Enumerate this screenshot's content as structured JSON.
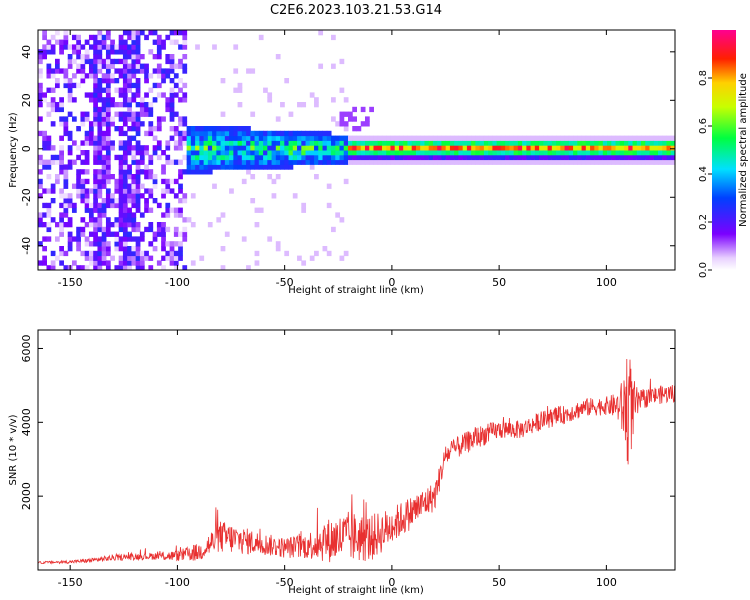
{
  "title": "C2E6.2023.103.21.53.G14",
  "chart_data": [
    {
      "type": "heatmap",
      "xlabel": "Height of straight line (km)",
      "ylabel": "Frequency (Hz)",
      "xlim": [
        -165,
        132
      ],
      "ylim": [
        -50,
        49
      ],
      "xticks": [
        -150,
        -100,
        -50,
        0,
        50,
        100
      ],
      "yticks": [
        -40,
        -20,
        0,
        20,
        40
      ],
      "colorbar": {
        "label": "Normalized spectral amplitude",
        "range": [
          0.0,
          1.0
        ],
        "ticks": [
          0.0,
          0.2,
          0.4,
          0.6,
          0.8
        ],
        "colormap": "rainbow (white→purple→blue→cyan→green→yellow→red)"
      },
      "features": [
        {
          "x_range": [
            -165,
            -95
          ],
          "description_value": "broadband noise 0.05–0.35"
        },
        {
          "x_range": [
            -95,
            -20
          ],
          "center_hz": 0,
          "halfwidth_hz": 8,
          "amplitude": 0.45
        },
        {
          "x_range": [
            -20,
            132
          ],
          "center_hz": 0,
          "halfwidth_hz": 3,
          "amplitude": 0.85
        },
        {
          "x_range": [
            -25,
            -10
          ],
          "center_hz": 12,
          "amplitude": 0.2
        }
      ]
    },
    {
      "type": "line",
      "xlabel": "Height of straight line (km)",
      "ylabel": "SNR (10 * v/v)",
      "xlim": [
        -165,
        132
      ],
      "ylim": [
        0,
        6500
      ],
      "xticks": [
        -150,
        -100,
        -50,
        0,
        50,
        100
      ],
      "yticks": [
        2000,
        4000,
        6000
      ],
      "color": "#e83030",
      "series": [
        {
          "x": [
            -165,
            -150,
            -140,
            -130,
            -120,
            -110,
            -100,
            -90,
            -80,
            -70,
            -60,
            -50,
            -40,
            -30,
            -20,
            -10,
            0,
            10,
            20,
            25,
            30,
            40,
            50,
            60,
            70,
            80,
            90,
            100,
            105,
            108,
            110,
            112,
            115,
            120,
            132
          ],
          "y": [
            200,
            220,
            260,
            330,
            360,
            380,
            380,
            480,
            900,
            800,
            700,
            600,
            650,
            800,
            900,
            850,
            1200,
            1600,
            2000,
            3100,
            3300,
            3600,
            3800,
            3800,
            4050,
            4200,
            4400,
            4450,
            4450,
            4350,
            4550,
            4300,
            4550,
            4700,
            4800
          ],
          "noise": [
            30,
            40,
            60,
            80,
            90,
            100,
            150,
            250,
            450,
            380,
            300,
            280,
            350,
            600,
            700,
            650,
            500,
            450,
            400,
            300,
            300,
            300,
            250,
            250,
            250,
            250,
            250,
            250,
            350,
            900,
            1800,
            1000,
            300,
            250,
            250
          ]
        }
      ]
    }
  ]
}
